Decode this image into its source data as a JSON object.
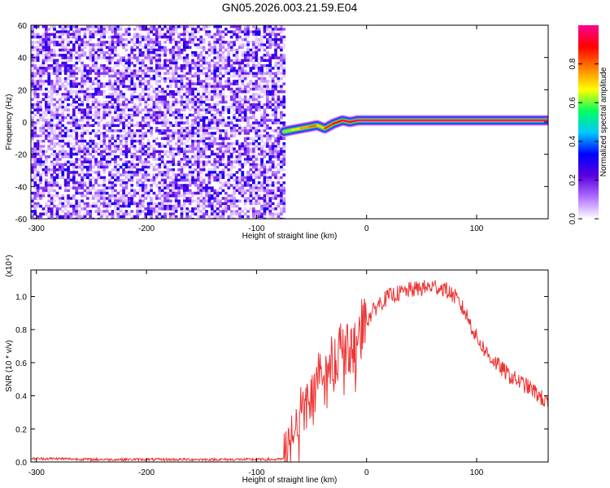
{
  "title": "GN05.2026.003.21.59.E04",
  "chart_data": [
    {
      "type": "heatmap",
      "xlabel": "Height of straight line (km)",
      "ylabel": "Frequency (Hz)",
      "xlim": [
        -305,
        165
      ],
      "ylim": [
        -60,
        60
      ],
      "xticks": [
        -300,
        -200,
        -100,
        0,
        100
      ],
      "yticks": [
        60,
        40,
        20,
        0,
        -20,
        -40,
        -60
      ],
      "noise_region": {
        "x": [
          -305,
          -75
        ],
        "y": [
          -60,
          60
        ],
        "level_range": [
          0.0,
          0.3
        ]
      },
      "signal_track": [
        {
          "x": -75,
          "y": -6,
          "level": 0.55
        },
        {
          "x": -68,
          "y": -5,
          "level": 0.6
        },
        {
          "x": -60,
          "y": -4,
          "level": 0.65
        },
        {
          "x": -52,
          "y": -3,
          "level": 0.75
        },
        {
          "x": -45,
          "y": -2,
          "level": 0.8
        },
        {
          "x": -38,
          "y": -4,
          "level": 0.7
        },
        {
          "x": -30,
          "y": -1,
          "level": 0.85
        },
        {
          "x": -22,
          "y": 1,
          "level": 0.9
        },
        {
          "x": -15,
          "y": 0,
          "level": 0.95
        },
        {
          "x": -8,
          "y": 1,
          "level": 0.95
        },
        {
          "x": 0,
          "y": 1,
          "level": 1.0
        },
        {
          "x": 165,
          "y": 1,
          "level": 1.0
        }
      ],
      "colorbar": {
        "label": "Normalized spectral amplitude",
        "range": [
          0,
          1
        ],
        "ticks": [
          "0.0",
          "0.2",
          "0.4",
          "0.6",
          "0.8"
        ],
        "colormap": [
          "#ffffff",
          "#b070ff",
          "#5a00e0",
          "#0000ff",
          "#00c8ff",
          "#00ff60",
          "#ffff00",
          "#ff8000",
          "#ff0000",
          "#ff0090"
        ]
      }
    },
    {
      "type": "line",
      "xlabel": "Height of straight line (km)",
      "ylabel": "SNR (10 * v/v)",
      "y_multiplier": "(x10⁴)",
      "xlim": [
        -305,
        165
      ],
      "ylim": [
        0,
        1.16
      ],
      "xticks": [
        -300,
        -200,
        -100,
        0,
        100
      ],
      "yticks": [
        0.0,
        0.2,
        0.4,
        0.6,
        0.8,
        1.0
      ],
      "color": "#ee3333",
      "series": [
        {
          "x": [
            -305,
            -280,
            -250,
            -200,
            -150,
            -100,
            -80,
            -75,
            -70,
            -65,
            -60,
            -55,
            -50,
            -45,
            -40,
            -35,
            -30,
            -25,
            -20,
            -15,
            -10,
            -5,
            0,
            10,
            20,
            30,
            40,
            50,
            60,
            70,
            80,
            90,
            100,
            110,
            120,
            130,
            140,
            150,
            160,
            165
          ],
          "values": [
            0.02,
            0.02,
            0.015,
            0.015,
            0.015,
            0.015,
            0.015,
            0.02,
            0.1,
            0.2,
            0.3,
            0.35,
            0.38,
            0.45,
            0.5,
            0.55,
            0.6,
            0.7,
            0.68,
            0.65,
            0.72,
            0.78,
            0.85,
            0.95,
            1.0,
            1.02,
            1.04,
            1.05,
            1.06,
            1.05,
            1.0,
            0.9,
            0.75,
            0.65,
            0.58,
            0.52,
            0.48,
            0.44,
            0.38,
            0.34
          ]
        }
      ]
    }
  ]
}
